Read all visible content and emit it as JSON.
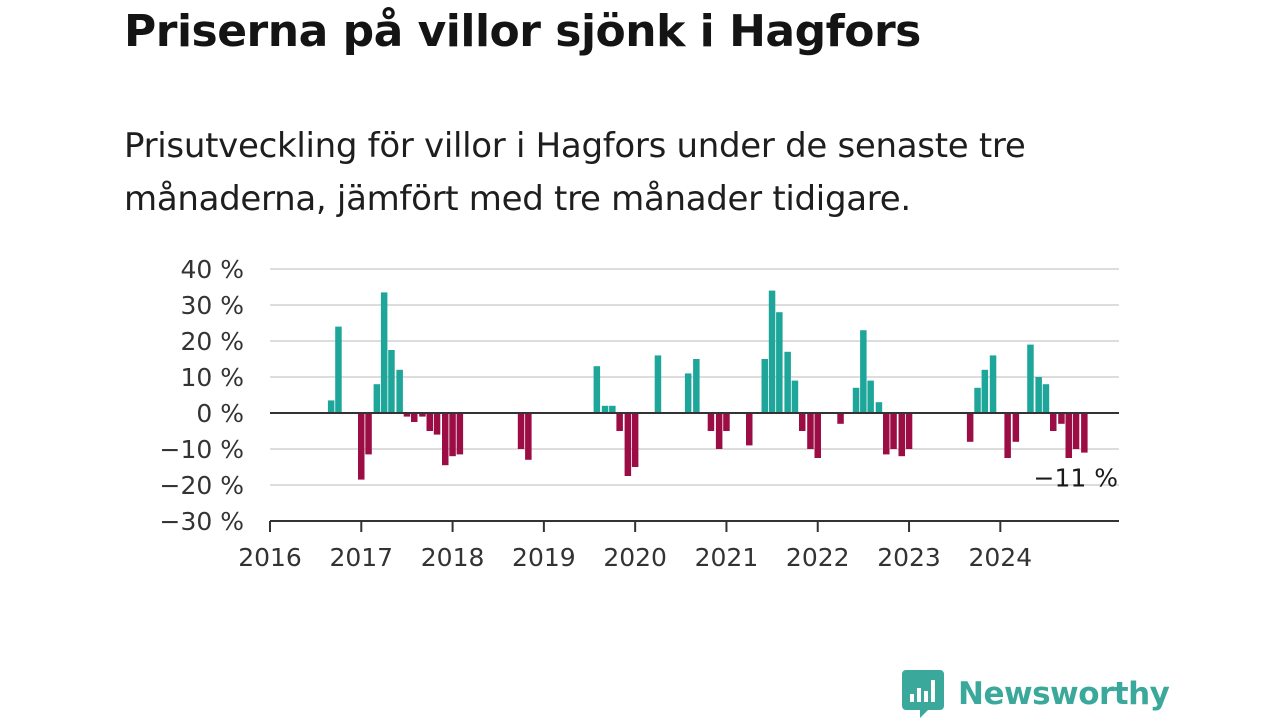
{
  "header": {
    "title": "Priserna på villor sjönk i Hagfors",
    "subtitle": "Prisutveckling för villor i Hagfors under de senaste tre månaderna, jämfört med tre månader tidigare."
  },
  "brand": {
    "name": "Newsworthy",
    "icon": "newsworthy-logo-icon",
    "color": "#3aa89a"
  },
  "chart_data": {
    "type": "bar",
    "title": "Priserna på villor sjönk i Hagfors",
    "subtitle": "Prisutveckling för villor i Hagfors under de senaste tre månaderna, jämfört med tre månader tidigare.",
    "xlabel": "",
    "ylabel": "",
    "ylim": [
      -30,
      40
    ],
    "xlim": [
      2016,
      2025.3
    ],
    "y_ticks": [
      40,
      30,
      20,
      10,
      0,
      -10,
      -20,
      -30
    ],
    "y_tick_labels": [
      "40 %",
      "30 %",
      "20 %",
      "10 %",
      "0 %",
      "−10 %",
      "−20 %",
      "−30 %"
    ],
    "x_ticks": [
      2016,
      2017,
      2018,
      2019,
      2020,
      2021,
      2022,
      2023,
      2024
    ],
    "x_tick_labels": [
      "2016",
      "2017",
      "2018",
      "2019",
      "2020",
      "2021",
      "2022",
      "2023",
      "2024"
    ],
    "grid": true,
    "colors": {
      "positive": "#1fa69b",
      "negative": "#9b0d44",
      "grid": "#dddddd",
      "axis": "#333333"
    },
    "annotation": {
      "text": "−11 %",
      "x": 2024.92,
      "y": -11
    },
    "x": [
      2016.67,
      2016.75,
      2017.0,
      2017.08,
      2017.17,
      2017.25,
      2017.33,
      2017.42,
      2017.5,
      2017.58,
      2017.67,
      2017.75,
      2017.83,
      2017.92,
      2018.0,
      2018.08,
      2018.75,
      2018.83,
      2019.58,
      2019.67,
      2019.75,
      2019.83,
      2019.92,
      2020.0,
      2020.25,
      2020.58,
      2020.67,
      2020.83,
      2020.92,
      2021.0,
      2021.25,
      2021.42,
      2021.5,
      2021.58,
      2021.67,
      2021.75,
      2021.83,
      2021.92,
      2022.0,
      2022.25,
      2022.42,
      2022.5,
      2022.58,
      2022.67,
      2022.75,
      2022.83,
      2022.92,
      2023.0,
      2023.67,
      2023.75,
      2023.83,
      2023.92,
      2024.08,
      2024.17,
      2024.33,
      2024.42,
      2024.5,
      2024.58,
      2024.67,
      2024.75,
      2024.83,
      2024.92
    ],
    "values": [
      3.5,
      24,
      -18.5,
      -11.5,
      8,
      33.5,
      17.5,
      12,
      -1,
      -2.5,
      -1,
      -5,
      -6,
      -14.5,
      -12,
      -11.5,
      -10,
      -13,
      13,
      2,
      2,
      -5,
      -17.5,
      -15,
      16,
      11,
      15,
      -5,
      -10,
      -5,
      -9,
      15,
      34,
      28,
      17,
      9,
      -5,
      -10,
      -12.5,
      -3,
      7,
      23,
      9,
      3,
      -11.5,
      -10,
      -12,
      -10,
      -8,
      7,
      12,
      16,
      -12.5,
      -8,
      19,
      10,
      8,
      -5,
      -3,
      -12.5,
      -10,
      -11
    ]
  }
}
